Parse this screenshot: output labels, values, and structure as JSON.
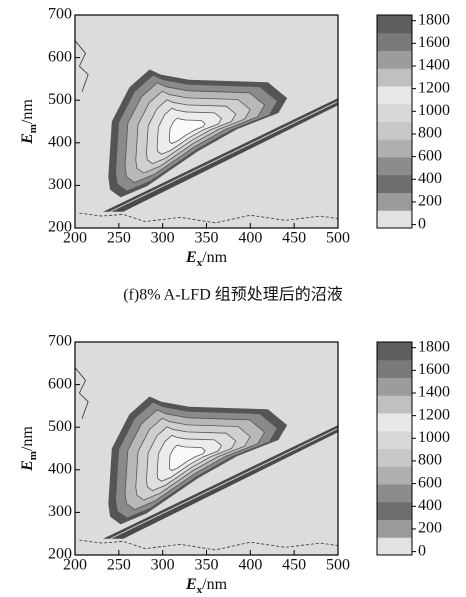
{
  "chart_data": [
    {
      "type": "contour",
      "xlabel": [
        "E",
        "x",
        "/nm"
      ],
      "ylabel": [
        "E",
        "m",
        "/nm"
      ],
      "xlim": [
        200,
        500
      ],
      "xticks": [
        200,
        250,
        300,
        350,
        400,
        450,
        500
      ],
      "ylim": [
        200,
        700
      ],
      "yticks": [
        200,
        300,
        400,
        500,
        600,
        700
      ],
      "clim": [
        -30,
        1850
      ],
      "cticks": [
        0,
        200,
        400,
        600,
        800,
        1000,
        1200,
        1400,
        1600,
        1800
      ],
      "colormap": [
        "#e2e2e2",
        "#9a9a9a",
        "#6e6e6e",
        "#8c8c8c",
        "#b0b0b0",
        "#c8c8c8",
        "#d8d8d8",
        "#e8e8e8",
        "#c0c0c0",
        "#9c9c9c",
        "#7a7a7a",
        "#5e5e5e"
      ],
      "caption": "(f)8% A-LFD 组预处理后的沼液"
    },
    {
      "type": "contour",
      "xlabel": [
        "E",
        "x",
        "/nm"
      ],
      "ylabel": [
        "E",
        "m",
        "/nm"
      ],
      "xlim": [
        200,
        500
      ],
      "xticks": [
        200,
        250,
        300,
        350,
        400,
        450,
        500
      ],
      "ylim": [
        200,
        700
      ],
      "yticks": [
        200,
        300,
        400,
        500,
        600,
        700
      ],
      "clim": [
        -30,
        1850
      ],
      "cticks": [
        0,
        200,
        400,
        600,
        800,
        1000,
        1200,
        1400,
        1600,
        1800
      ],
      "colormap": [
        "#e2e2e2",
        "#9a9a9a",
        "#6e6e6e",
        "#8c8c8c",
        "#b0b0b0",
        "#c8c8c8",
        "#d8d8d8",
        "#e8e8e8",
        "#c0c0c0",
        "#9c9c9c",
        "#7a7a7a",
        "#5e5e5e"
      ]
    }
  ]
}
